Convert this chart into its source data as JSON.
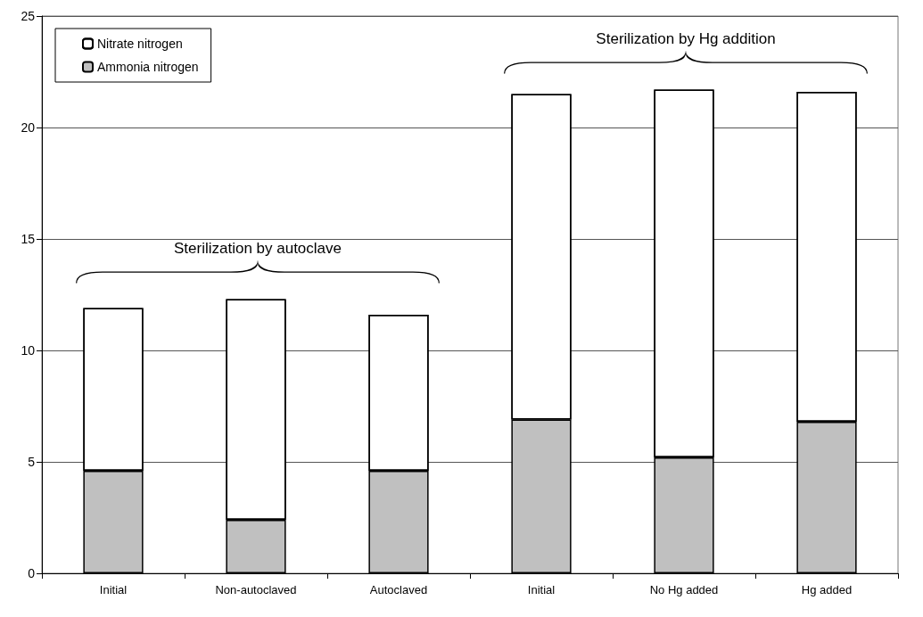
{
  "chart_data": {
    "type": "bar",
    "stacked": true,
    "categories": [
      "Initial",
      "Non-autoclaved",
      "Autoclaved",
      "Initial",
      "No Hg added",
      "Hg added"
    ],
    "series": [
      {
        "name": "Ammonia nitrogen",
        "color": "#c0c0c0",
        "values": [
          4.6,
          2.4,
          4.6,
          6.9,
          5.2,
          6.8
        ]
      },
      {
        "name": "Nitrate nitrogen",
        "color": "#ffffff",
        "values": [
          7.3,
          9.9,
          7.0,
          14.6,
          16.5,
          14.8
        ]
      }
    ],
    "ylim": [
      0,
      25
    ],
    "yticks": [
      0,
      5,
      10,
      15,
      20,
      25
    ],
    "grid": "y",
    "legend": "top left",
    "annotations": [
      "Sterilization by autoclave",
      "Sterilization by Hg addition"
    ]
  }
}
